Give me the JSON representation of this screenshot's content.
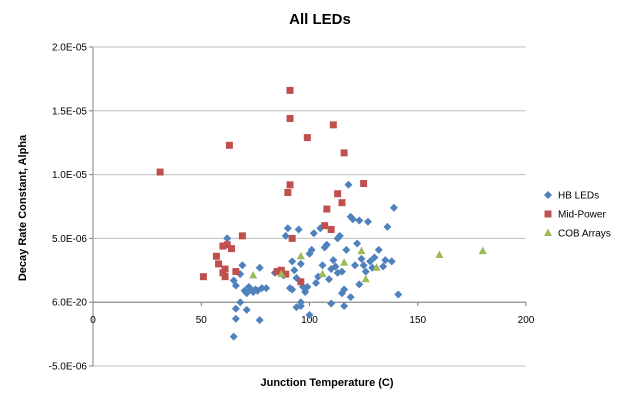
{
  "chart_data": {
    "type": "scatter",
    "title": "All LEDs",
    "xlabel": "Junction Temperature (C)",
    "ylabel": "Decay Rate Constant, Alpha",
    "xlim": [
      0,
      200
    ],
    "ylim": [
      -5e-06,
      2e-05
    ],
    "x_ticks": [
      0,
      50,
      100,
      150,
      200
    ],
    "x_tick_labels": [
      "0",
      "50",
      "100",
      "150",
      "200"
    ],
    "y_ticks": [
      2e-05,
      1.5e-05,
      1e-05,
      5e-06,
      0,
      -5e-06
    ],
    "y_tick_labels": [
      "2.0E-05",
      "1.5E-05",
      "1.0E-05",
      "5.0E-06",
      "6.0E-20",
      "-5.0E-06"
    ],
    "grid": "horizontal",
    "legend_position": "right",
    "series": [
      {
        "name": "HB LEDs",
        "color": "#4F81BD",
        "marker": "diamond",
        "points": [
          [
            62,
            5e-06
          ],
          [
            65,
            1.7e-06
          ],
          [
            66,
            1.3e-06
          ],
          [
            68,
            2.2e-06
          ],
          [
            69,
            2.9e-06
          ],
          [
            70,
            9e-07
          ],
          [
            71,
            7e-07
          ],
          [
            72,
            1.2e-06
          ],
          [
            73,
            1e-06
          ],
          [
            74,
            8e-07
          ],
          [
            75,
            1e-06
          ],
          [
            76,
            9e-07
          ],
          [
            77,
            2.7e-06
          ],
          [
            78,
            1.1e-06
          ],
          [
            80,
            1.1e-06
          ],
          [
            66,
            -5e-07
          ],
          [
            68,
            0.0
          ],
          [
            71,
            -6e-07
          ],
          [
            77,
            -1.4e-06
          ],
          [
            66,
            -1.3e-06
          ],
          [
            65,
            -2.7e-06
          ],
          [
            84,
            2.3e-06
          ],
          [
            86,
            2.5e-06
          ],
          [
            88,
            2.1e-06
          ],
          [
            89,
            5.2e-06
          ],
          [
            90,
            5.8e-06
          ],
          [
            91,
            1.1e-06
          ],
          [
            92,
            1e-06
          ],
          [
            93,
            2.5e-06
          ],
          [
            94,
            1.9e-06
          ],
          [
            95,
            5.7e-06
          ],
          [
            96,
            3e-06
          ],
          [
            97,
            1.2e-06
          ],
          [
            98,
            8e-07
          ],
          [
            99,
            1.2e-06
          ],
          [
            100,
            3.8e-06
          ],
          [
            101,
            4.1e-06
          ],
          [
            102,
            5.4e-06
          ],
          [
            103,
            1.5e-06
          ],
          [
            104,
            2e-06
          ],
          [
            105,
            5.8e-06
          ],
          [
            106,
            2.9e-06
          ],
          [
            107,
            4.3e-06
          ],
          [
            108,
            4.5e-06
          ],
          [
            109,
            1.8e-06
          ],
          [
            110,
            2.6e-06
          ],
          [
            111,
            3.3e-06
          ],
          [
            112,
            2.8e-06
          ],
          [
            113,
            2.3e-06
          ],
          [
            114,
            5.2e-06
          ],
          [
            115,
            2.4e-06
          ],
          [
            116,
            1e-06
          ],
          [
            117,
            4.1e-06
          ],
          [
            118,
            9.2e-06
          ],
          [
            119,
            6.7e-06
          ],
          [
            120,
            6.5e-06
          ],
          [
            121,
            2.9e-06
          ],
          [
            122,
            4.6e-06
          ],
          [
            123,
            6.4e-06
          ],
          [
            124,
            3.4e-06
          ],
          [
            125,
            2.9e-06
          ],
          [
            126,
            2.4e-06
          ],
          [
            127,
            6.3e-06
          ],
          [
            128,
            3.2e-06
          ],
          [
            129,
            2.7e-06
          ],
          [
            130,
            3.5e-06
          ],
          [
            132,
            4.1e-06
          ],
          [
            134,
            2.8e-06
          ],
          [
            135,
            3.3e-06
          ],
          [
            136,
            5.9e-06
          ],
          [
            138,
            3.2e-06
          ],
          [
            139,
            7.4e-06
          ],
          [
            141,
            6e-07
          ],
          [
            96,
            -3e-07
          ],
          [
            100,
            -1e-06
          ],
          [
            115,
            7e-07
          ],
          [
            116,
            -3e-07
          ],
          [
            119,
            4e-07
          ],
          [
            123,
            1.4e-06
          ],
          [
            113,
            5e-06
          ],
          [
            92,
            3.2e-06
          ],
          [
            110,
            -1e-07
          ],
          [
            96,
            0.0
          ],
          [
            94,
            -4e-07
          ]
        ]
      },
      {
        "name": "Mid-Power",
        "color": "#C0504D",
        "marker": "square",
        "points": [
          [
            31,
            1.02e-05
          ],
          [
            51,
            2e-06
          ],
          [
            57,
            3.6e-06
          ],
          [
            58,
            3e-06
          ],
          [
            60,
            4.4e-06
          ],
          [
            60,
            2.3e-06
          ],
          [
            61,
            2e-06
          ],
          [
            61,
            2.6e-06
          ],
          [
            62,
            4.5e-06
          ],
          [
            63,
            1.23e-05
          ],
          [
            64,
            4.2e-06
          ],
          [
            66,
            2.4e-06
          ],
          [
            69,
            5.2e-06
          ],
          [
            85,
            2.4e-06
          ],
          [
            87,
            2.5e-06
          ],
          [
            89,
            2.2e-06
          ],
          [
            90,
            8.6e-06
          ],
          [
            91,
            9.2e-06
          ],
          [
            91,
            1.66e-05
          ],
          [
            91,
            1.44e-05
          ],
          [
            92,
            5e-06
          ],
          [
            96,
            1.6e-06
          ],
          [
            99,
            1.29e-05
          ],
          [
            107,
            6e-06
          ],
          [
            108,
            7.3e-06
          ],
          [
            110,
            5.7e-06
          ],
          [
            111,
            1.39e-05
          ],
          [
            113,
            8.5e-06
          ],
          [
            115,
            7.8e-06
          ],
          [
            116,
            1.17e-05
          ],
          [
            125,
            9.3e-06
          ]
        ]
      },
      {
        "name": "COB Arrays",
        "color": "#9BBB59",
        "marker": "triangle",
        "points": [
          [
            74,
            2.1e-06
          ],
          [
            87,
            2.2e-06
          ],
          [
            96,
            3.6e-06
          ],
          [
            106,
            2.2e-06
          ],
          [
            116,
            3.1e-06
          ],
          [
            124,
            4e-06
          ],
          [
            126,
            1.8e-06
          ],
          [
            131,
            2.7e-06
          ],
          [
            160,
            3.7e-06
          ],
          [
            180,
            4e-06
          ]
        ]
      }
    ]
  }
}
